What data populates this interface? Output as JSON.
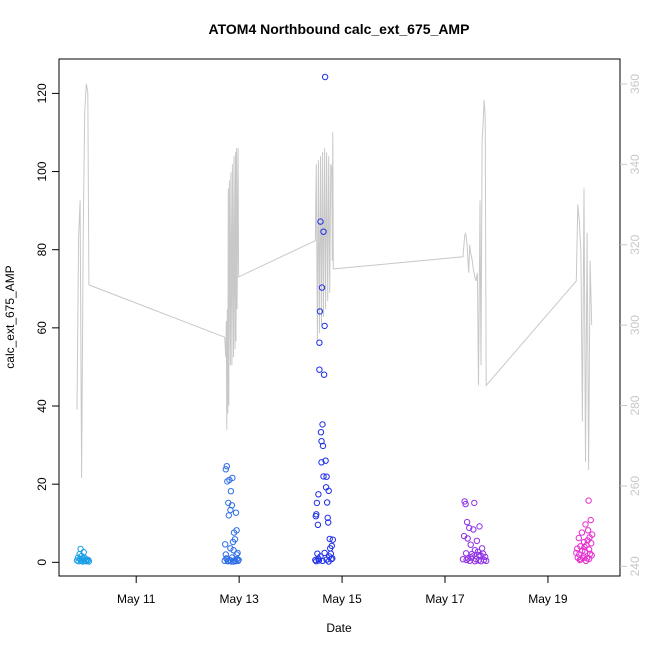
{
  "chart_data": {
    "type": "scatter",
    "title": "ATOM4 Northbound calc_ext_675_AMP",
    "xlabel": "Date",
    "ylabel": "calc_ext_675_AMP",
    "x_ticks": [
      {
        "label": "May 11",
        "day": 11
      },
      {
        "label": "May 13",
        "day": 13
      },
      {
        "label": "May 15",
        "day": 15
      },
      {
        "label": "May 17",
        "day": 17
      },
      {
        "label": "May 19",
        "day": 19
      }
    ],
    "xlim_days": [
      9.5,
      20.4
    ],
    "ylim": [
      -3.5,
      128.8
    ],
    "y_ticks": [
      0,
      20,
      40,
      60,
      80,
      100,
      120
    ],
    "y2lim": [
      237.6,
      366.2
    ],
    "y2_ticks": [
      240,
      260,
      280,
      300,
      320,
      340,
      360
    ],
    "y2_color": "#c8c8c8",
    "line_series": {
      "color": "#c8c8c8",
      "points": [
        [
          9.85,
          279
        ],
        [
          9.88,
          322
        ],
        [
          9.91,
          331
        ],
        [
          9.94,
          262
        ],
        [
          9.97,
          322
        ],
        [
          10.0,
          353
        ],
        [
          10.03,
          360
        ],
        [
          10.06,
          358
        ],
        [
          10.08,
          310
        ],
        [
          12.72,
          297
        ],
        [
          12.74,
          292
        ],
        [
          12.75,
          301
        ],
        [
          12.76,
          274
        ],
        [
          12.77,
          304
        ],
        [
          12.78,
          278
        ],
        [
          12.79,
          334
        ],
        [
          12.8,
          280
        ],
        [
          12.81,
          336
        ],
        [
          12.83,
          290
        ],
        [
          12.84,
          338
        ],
        [
          12.86,
          290
        ],
        [
          12.87,
          340
        ],
        [
          12.89,
          292
        ],
        [
          12.9,
          342
        ],
        [
          12.92,
          294
        ],
        [
          12.93,
          343
        ],
        [
          12.94,
          296
        ],
        [
          12.95,
          344
        ],
        [
          12.96,
          304
        ],
        [
          12.98,
          344
        ],
        [
          12.99,
          312
        ],
        [
          14.48,
          321
        ],
        [
          14.5,
          340
        ],
        [
          14.52,
          296
        ],
        [
          14.54,
          341
        ],
        [
          14.56,
          298
        ],
        [
          14.58,
          342
        ],
        [
          14.6,
          300
        ],
        [
          14.62,
          343
        ],
        [
          14.64,
          302
        ],
        [
          14.66,
          344
        ],
        [
          14.68,
          304
        ],
        [
          14.7,
          343
        ],
        [
          14.72,
          306
        ],
        [
          14.74,
          342
        ],
        [
          14.76,
          308
        ],
        [
          14.78,
          340
        ],
        [
          14.8,
          339
        ],
        [
          14.81,
          316
        ],
        [
          14.82,
          348
        ],
        [
          14.83,
          314
        ],
        [
          17.35,
          317
        ],
        [
          17.38,
          322
        ],
        [
          17.4,
          323
        ],
        [
          17.43,
          320
        ],
        [
          17.46,
          313
        ],
        [
          17.48,
          320
        ],
        [
          17.5,
          318
        ],
        [
          17.53,
          316
        ],
        [
          17.55,
          314
        ],
        [
          17.58,
          312
        ],
        [
          17.6,
          311
        ],
        [
          17.63,
          313
        ],
        [
          17.65,
          285
        ],
        [
          17.68,
          331
        ],
        [
          17.7,
          290
        ],
        [
          17.72,
          346
        ],
        [
          17.74,
          350
        ],
        [
          17.76,
          356
        ],
        [
          17.78,
          352
        ],
        [
          17.8,
          285
        ],
        [
          19.55,
          311
        ],
        [
          19.58,
          330
        ],
        [
          19.61,
          326
        ],
        [
          19.64,
          318
        ],
        [
          19.67,
          276
        ],
        [
          19.7,
          334
        ],
        [
          19.73,
          266
        ],
        [
          19.76,
          323
        ],
        [
          19.79,
          264
        ],
        [
          19.82,
          316
        ],
        [
          19.85,
          300
        ]
      ]
    },
    "scatter_series": [
      {
        "color": "#1a9fe6",
        "points": [
          [
            9.85,
            0.5
          ],
          [
            9.87,
            1.2
          ],
          [
            9.88,
            0.3
          ],
          [
            9.9,
            2.1
          ],
          [
            9.91,
            0.8
          ],
          [
            9.92,
            3.4
          ],
          [
            9.93,
            0.4
          ],
          [
            9.94,
            1.6
          ],
          [
            9.96,
            0.2
          ],
          [
            9.97,
            0.9
          ],
          [
            9.98,
            2.6
          ],
          [
            9.99,
            0.5
          ],
          [
            10.0,
            1.1
          ],
          [
            10.02,
            0.3
          ],
          [
            10.03,
            0.7
          ],
          [
            10.05,
            0.4
          ],
          [
            10.07,
            0.6
          ],
          [
            10.08,
            0.2
          ]
        ]
      },
      {
        "color": "#2f6fe8",
        "points": [
          [
            12.72,
            0.4
          ],
          [
            12.73,
            4.6
          ],
          [
            12.74,
            23.8
          ],
          [
            12.75,
            1.0
          ],
          [
            12.76,
            24.6
          ],
          [
            12.77,
            20.7
          ],
          [
            12.78,
            0.3
          ],
          [
            12.79,
            15.2
          ],
          [
            12.8,
            12.0
          ],
          [
            12.81,
            21.1
          ],
          [
            12.82,
            0.6
          ],
          [
            12.83,
            13.4
          ],
          [
            12.84,
            18.2
          ],
          [
            12.85,
            0.2
          ],
          [
            12.86,
            14.6
          ],
          [
            12.87,
            21.6
          ],
          [
            12.88,
            5.2
          ],
          [
            12.89,
            3.1
          ],
          [
            12.9,
            7.6
          ],
          [
            12.91,
            0.5
          ],
          [
            12.92,
            5.9
          ],
          [
            12.93,
            0.3
          ],
          [
            12.94,
            12.7
          ],
          [
            12.95,
            8.2
          ],
          [
            12.96,
            0.8
          ],
          [
            12.97,
            2.4
          ],
          [
            12.98,
            0.4
          ],
          [
            12.99,
            0.6
          ],
          [
            12.74,
            2.0
          ],
          [
            12.76,
            0.9
          ],
          [
            12.79,
            0.4
          ],
          [
            12.83,
            3.6
          ],
          [
            12.86,
            1.2
          ],
          [
            12.89,
            0.2
          ],
          [
            12.95,
            2.0
          ]
        ]
      },
      {
        "color": "#1f2fe8",
        "points": [
          [
            14.48,
            0.6
          ],
          [
            14.49,
            11.8
          ],
          [
            14.5,
            12.3
          ],
          [
            14.51,
            15.2
          ],
          [
            14.52,
            2.2
          ],
          [
            14.53,
            9.6
          ],
          [
            14.54,
            17.4
          ],
          [
            14.55,
            0.5
          ],
          [
            14.56,
            56.2
          ],
          [
            14.57,
            64.2
          ],
          [
            14.58,
            87.2
          ],
          [
            14.59,
            33.3
          ],
          [
            14.6,
            25.6
          ],
          [
            14.61,
            70.3
          ],
          [
            14.62,
            35.3
          ],
          [
            14.63,
            29.8
          ],
          [
            14.64,
            84.6
          ],
          [
            14.65,
            48.0
          ],
          [
            14.66,
            60.5
          ],
          [
            14.67,
            124.2
          ],
          [
            14.68,
            26.0
          ],
          [
            14.69,
            19.2
          ],
          [
            14.7,
            21.9
          ],
          [
            14.71,
            15.3
          ],
          [
            14.72,
            11.4
          ],
          [
            14.73,
            10.2
          ],
          [
            14.74,
            18.3
          ],
          [
            14.75,
            1.5
          ],
          [
            14.76,
            6.0
          ],
          [
            14.77,
            3.6
          ],
          [
            14.78,
            2.2
          ],
          [
            14.79,
            0.8
          ],
          [
            14.8,
            4.2
          ],
          [
            14.81,
            1.0
          ],
          [
            14.82,
            5.8
          ],
          [
            14.5,
            0.3
          ],
          [
            14.54,
            0.9
          ],
          [
            14.58,
            1.5
          ],
          [
            14.62,
            0.4
          ],
          [
            14.66,
            2.4
          ],
          [
            14.7,
            0.7
          ],
          [
            14.74,
            0.2
          ],
          [
            14.56,
            49.3
          ],
          [
            14.6,
            31.0
          ],
          [
            14.64,
            22.0
          ]
        ]
      },
      {
        "color": "#8f2fe8",
        "points": [
          [
            17.35,
            0.8
          ],
          [
            17.37,
            6.7
          ],
          [
            17.38,
            15.6
          ],
          [
            17.4,
            14.9
          ],
          [
            17.41,
            2.3
          ],
          [
            17.43,
            10.3
          ],
          [
            17.44,
            6.1
          ],
          [
            17.45,
            1.0
          ],
          [
            17.47,
            8.8
          ],
          [
            17.48,
            0.4
          ],
          [
            17.5,
            4.5
          ],
          [
            17.52,
            2.1
          ],
          [
            17.53,
            1.5
          ],
          [
            17.55,
            8.4
          ],
          [
            17.57,
            15.2
          ],
          [
            17.58,
            3.1
          ],
          [
            17.6,
            0.8
          ],
          [
            17.62,
            5.5
          ],
          [
            17.64,
            2.7
          ],
          [
            17.65,
            0.5
          ],
          [
            17.67,
            9.2
          ],
          [
            17.69,
            1.8
          ],
          [
            17.7,
            0.3
          ],
          [
            17.72,
            3.6
          ],
          [
            17.74,
            2.2
          ],
          [
            17.76,
            0.6
          ],
          [
            17.78,
            1.4
          ],
          [
            17.8,
            0.4
          ],
          [
            17.42,
            0.6
          ],
          [
            17.5,
            1.2
          ],
          [
            17.58,
            0.3
          ],
          [
            17.66,
            1.9
          ]
        ]
      },
      {
        "color": "#e62fd0",
        "points": [
          [
            19.55,
            2.4
          ],
          [
            19.57,
            3.5
          ],
          [
            19.58,
            1.2
          ],
          [
            19.6,
            6.2
          ],
          [
            19.61,
            2.0
          ],
          [
            19.63,
            4.1
          ],
          [
            19.64,
            0.8
          ],
          [
            19.66,
            7.6
          ],
          [
            19.67,
            3.0
          ],
          [
            19.69,
            1.5
          ],
          [
            19.7,
            5.2
          ],
          [
            19.72,
            2.8
          ],
          [
            19.73,
            9.7
          ],
          [
            19.75,
            4.4
          ],
          [
            19.76,
            1.0
          ],
          [
            19.78,
            8.2
          ],
          [
            19.79,
            15.8
          ],
          [
            19.8,
            3.3
          ],
          [
            19.81,
            6.4
          ],
          [
            19.82,
            2.2
          ],
          [
            19.83,
            10.8
          ],
          [
            19.84,
            4.9
          ],
          [
            19.85,
            1.8
          ],
          [
            19.86,
            7.1
          ],
          [
            19.62,
            0.6
          ],
          [
            19.68,
            1.1
          ],
          [
            19.74,
            0.4
          ],
          [
            19.8,
            0.9
          ],
          [
            19.77,
            5.6
          ],
          [
            19.71,
            3.9
          ]
        ]
      }
    ]
  }
}
